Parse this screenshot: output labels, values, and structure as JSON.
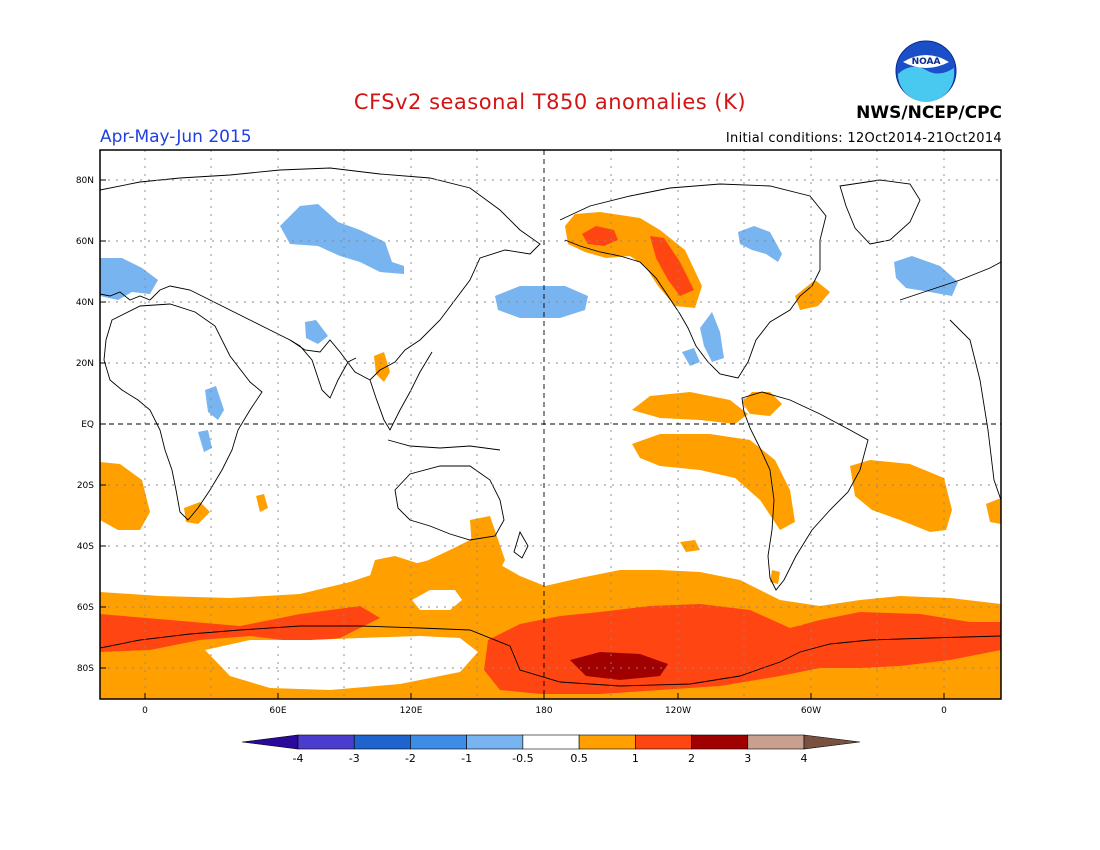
{
  "header": {
    "title": "CFSv2 seasonal T850 anomalies (K)",
    "season": "Apr-May-Jun 2015",
    "initial_conditions": "Initial conditions: 12Oct2014-21Oct2014",
    "agency": "NWS/NCEP/CPC",
    "logo_text": "NOAA"
  },
  "axes": {
    "lat_labels": [
      "80N",
      "60N",
      "40N",
      "20N",
      "EQ",
      "20S",
      "40S",
      "60S",
      "80S"
    ],
    "lon_labels": [
      "0",
      "60E",
      "120E",
      "180",
      "120W",
      "60W",
      "0"
    ]
  },
  "colorbar": {
    "labels": [
      "-4",
      "-3",
      "-2",
      "-1",
      "-0.5",
      "0.5",
      "1",
      "2",
      "3",
      "4"
    ],
    "colors": [
      "#2a0a9a",
      "#4a3ccc",
      "#1f63cc",
      "#3c8ce8",
      "#78b4f0",
      "#ffffff",
      "#ffa000",
      "#ff4612",
      "#a00000",
      "#c8a090",
      "#7a5040"
    ]
  },
  "colors": {
    "title": "#d21414",
    "season": "#2040e0",
    "cold": "#78b4f0",
    "warm1": "#ffa000",
    "warm2": "#ff4612",
    "warm3": "#a00000"
  }
}
